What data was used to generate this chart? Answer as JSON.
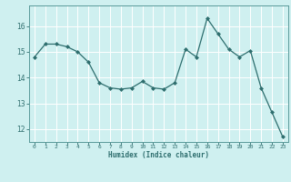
{
  "x": [
    0,
    1,
    2,
    3,
    4,
    5,
    6,
    7,
    8,
    9,
    10,
    11,
    12,
    13,
    14,
    15,
    16,
    17,
    18,
    19,
    20,
    21,
    22,
    23
  ],
  "y": [
    14.8,
    15.3,
    15.3,
    15.2,
    15.0,
    14.6,
    13.8,
    13.6,
    13.55,
    13.6,
    13.85,
    13.6,
    13.55,
    13.8,
    15.1,
    14.8,
    16.3,
    15.7,
    15.1,
    14.8,
    15.05,
    13.6,
    12.65,
    11.7
  ],
  "line_color": "#2e6e6e",
  "marker": "D",
  "marker_size": 2.0,
  "bg_color": "#cff0f0",
  "grid_color": "#ffffff",
  "xlabel": "Humidex (Indice chaleur)",
  "ylim": [
    11.5,
    16.8
  ],
  "xlim": [
    -0.5,
    23.5
  ],
  "yticks": [
    12,
    13,
    14,
    15,
    16
  ],
  "xticks": [
    0,
    1,
    2,
    3,
    4,
    5,
    6,
    7,
    8,
    9,
    10,
    11,
    12,
    13,
    14,
    15,
    16,
    17,
    18,
    19,
    20,
    21,
    22,
    23
  ],
  "tick_color": "#2e6e6e",
  "label_color": "#2e6e6e",
  "spine_color": "#5a9a9a",
  "xlabel_fontsize": 5.5,
  "xtick_fontsize": 4.5,
  "ytick_fontsize": 5.5
}
